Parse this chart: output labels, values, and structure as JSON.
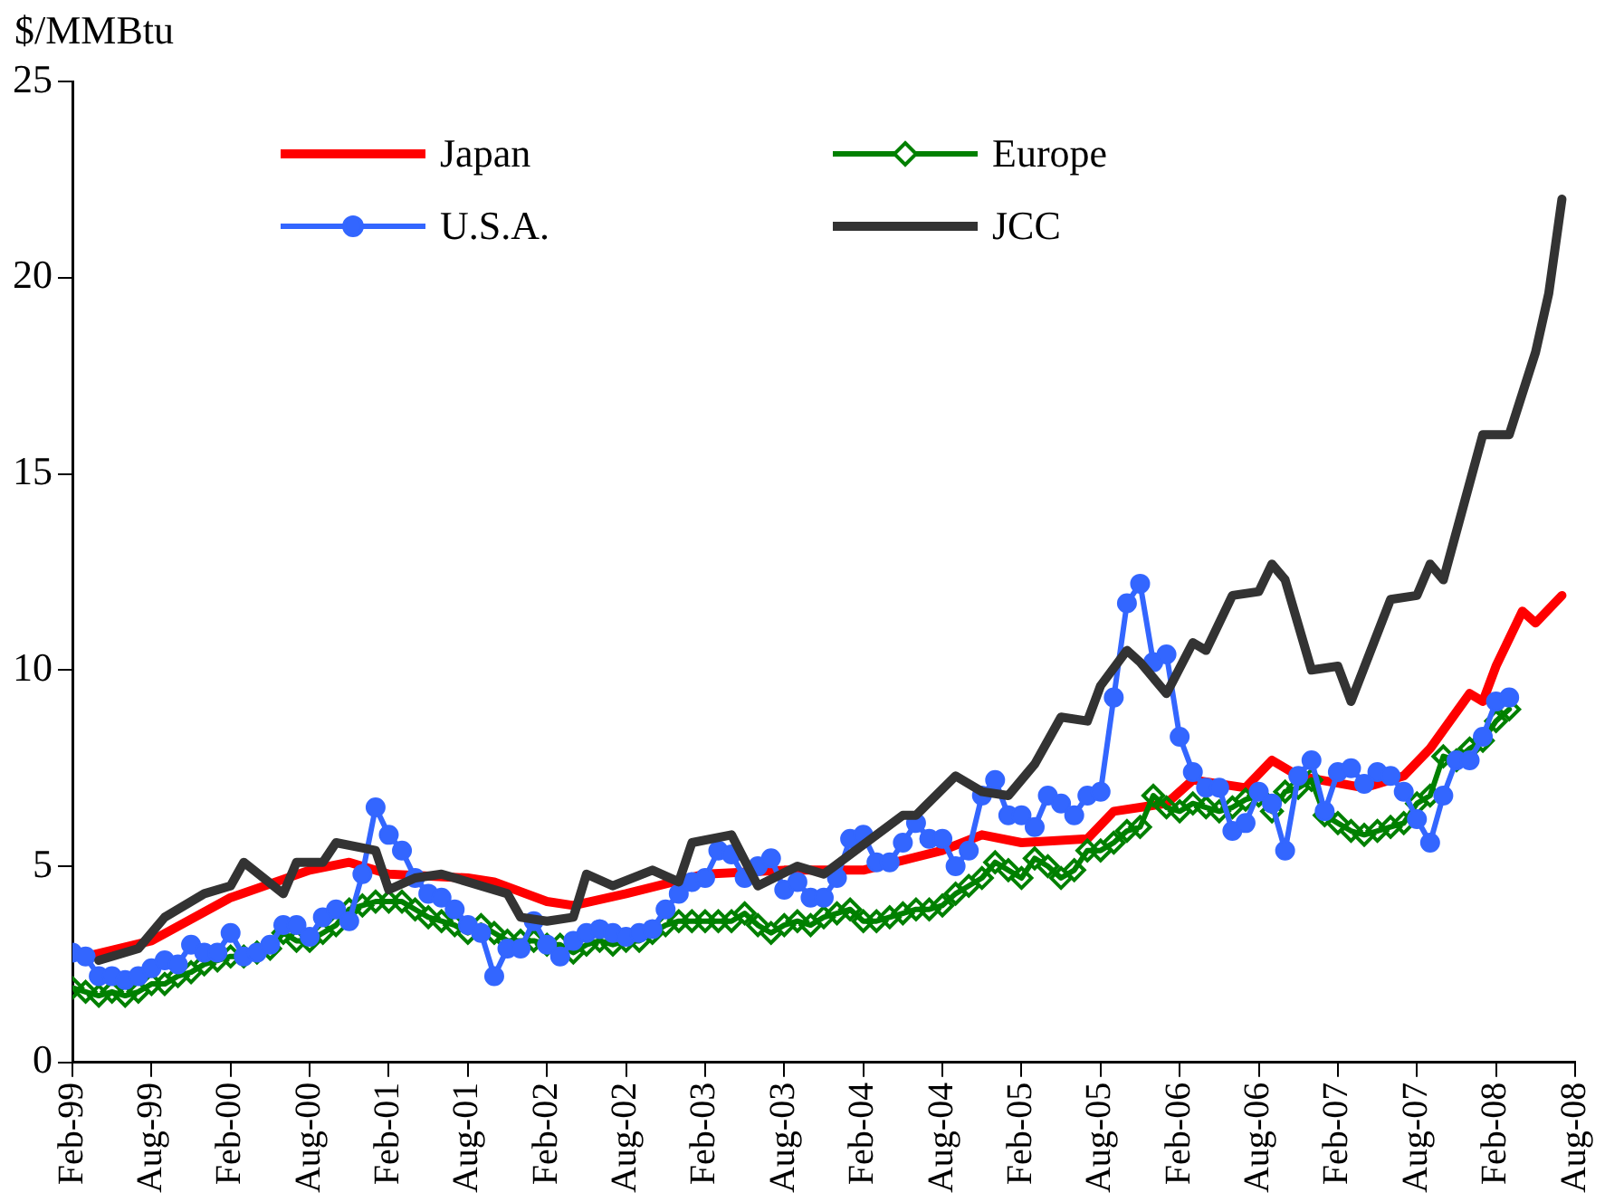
{
  "chart_data": {
    "type": "line",
    "ylabel": "$/MMBtu",
    "legend": "top left",
    "x": [
      "1999-02",
      "1999-03",
      "1999-04",
      "1999-05",
      "1999-06",
      "1999-07",
      "1999-08",
      "1999-09",
      "1999-10",
      "1999-11",
      "1999-12",
      "2000-01",
      "2000-02",
      "2000-03",
      "2000-04",
      "2000-05",
      "2000-06",
      "2000-07",
      "2000-08",
      "2000-09",
      "2000-10",
      "2000-11",
      "2000-12",
      "2001-01",
      "2001-02",
      "2001-03",
      "2001-04",
      "2001-05",
      "2001-06",
      "2001-07",
      "2001-08",
      "2001-09",
      "2001-10",
      "2001-11",
      "2001-12",
      "2002-01",
      "2002-02",
      "2002-03",
      "2002-04",
      "2002-05",
      "2002-06",
      "2002-07",
      "2002-08",
      "2002-09",
      "2002-10",
      "2002-11",
      "2002-12",
      "2003-01",
      "2003-02",
      "2003-03",
      "2003-04",
      "2003-05",
      "2003-06",
      "2003-07",
      "2003-08",
      "2003-09",
      "2003-10",
      "2003-11",
      "2003-12",
      "2004-01",
      "2004-02",
      "2004-03",
      "2004-04",
      "2004-05",
      "2004-06",
      "2004-07",
      "2004-08",
      "2004-09",
      "2004-10",
      "2004-11",
      "2004-12",
      "2005-01",
      "2005-02",
      "2005-03",
      "2005-04",
      "2005-05",
      "2005-06",
      "2005-07",
      "2005-08",
      "2005-09",
      "2005-10",
      "2005-11",
      "2005-12",
      "2006-01",
      "2006-02",
      "2006-03",
      "2006-04",
      "2006-05",
      "2006-06",
      "2006-07",
      "2006-08",
      "2006-09",
      "2006-10",
      "2006-11",
      "2006-12",
      "2007-01",
      "2007-02",
      "2007-03",
      "2007-04",
      "2007-05",
      "2007-06",
      "2007-07",
      "2007-08",
      "2007-09",
      "2007-10",
      "2007-11",
      "2007-12",
      "2008-01",
      "2008-02",
      "2008-03"
    ],
    "series": [
      {
        "name": "Japan",
        "color": "#ff0000",
        "marker": "none",
        "x": [
          "1999-03",
          "1999-08",
          "2000-02",
          "2000-08",
          "2000-11",
          "2001-02",
          "2001-08",
          "2001-10",
          "2002-02",
          "2002-04",
          "2002-08",
          "2003-02",
          "2003-08",
          "2004-02",
          "2004-08",
          "2004-11",
          "2005-02",
          "2005-07",
          "2005-09",
          "2006-01",
          "2006-03",
          "2006-07",
          "2006-09",
          "2006-11",
          "2007-04",
          "2007-07",
          "2007-09",
          "2007-12",
          "2008-01",
          "2008-02",
          "2008-04",
          "2008-05",
          "2008-07"
        ],
        "values": [
          2.7,
          3.1,
          4.2,
          4.9,
          5.1,
          4.8,
          4.7,
          4.6,
          4.1,
          4.0,
          4.3,
          4.8,
          4.9,
          4.9,
          5.4,
          5.8,
          5.6,
          5.7,
          6.4,
          6.6,
          7.2,
          7.0,
          7.7,
          7.3,
          7.0,
          7.3,
          8.0,
          9.4,
          9.2,
          10.1,
          11.5,
          11.2,
          11.9
        ]
      },
      {
        "name": "Europe",
        "color": "#008000",
        "marker": "diamond",
        "values": [
          1.9,
          1.8,
          1.7,
          1.8,
          1.7,
          1.8,
          2.0,
          2.0,
          2.2,
          2.3,
          2.5,
          2.6,
          2.7,
          2.7,
          2.8,
          2.9,
          3.3,
          3.1,
          3.1,
          3.3,
          3.5,
          3.9,
          4.0,
          4.1,
          4.1,
          4.1,
          3.9,
          3.7,
          3.6,
          3.5,
          3.3,
          3.5,
          3.3,
          3.1,
          3.1,
          3.1,
          3.0,
          3.0,
          2.8,
          3.0,
          3.1,
          3.0,
          3.1,
          3.1,
          3.3,
          3.5,
          3.6,
          3.6,
          3.6,
          3.6,
          3.6,
          3.8,
          3.5,
          3.3,
          3.5,
          3.6,
          3.5,
          3.7,
          3.8,
          3.9,
          3.6,
          3.6,
          3.7,
          3.8,
          3.9,
          3.9,
          4.0,
          4.3,
          4.5,
          4.7,
          5.1,
          4.9,
          4.7,
          5.2,
          5.0,
          4.7,
          4.9,
          5.4,
          5.4,
          5.6,
          5.9,
          6.0,
          6.8,
          6.5,
          6.4,
          6.6,
          6.5,
          6.4,
          6.5,
          6.7,
          6.8,
          6.4,
          6.9,
          7.0,
          7.2,
          6.3,
          6.1,
          5.9,
          5.8,
          5.9,
          6.0,
          6.1,
          6.6,
          6.8,
          7.8,
          7.7,
          8.0,
          8.2,
          8.7,
          9.0
        ]
      },
      {
        "name": "U.S.A.",
        "color": "#3366ff",
        "marker": "circle",
        "values": [
          2.8,
          2.7,
          2.2,
          2.2,
          2.1,
          2.2,
          2.4,
          2.6,
          2.5,
          3.0,
          2.8,
          2.8,
          3.3,
          2.7,
          2.8,
          3.0,
          3.5,
          3.5,
          3.2,
          3.7,
          3.9,
          3.6,
          4.8,
          6.5,
          5.8,
          5.4,
          4.7,
          4.3,
          4.2,
          3.9,
          3.5,
          3.3,
          2.2,
          2.9,
          2.9,
          3.6,
          3.0,
          2.7,
          3.1,
          3.3,
          3.4,
          3.3,
          3.2,
          3.3,
          3.4,
          3.9,
          4.3,
          4.6,
          4.7,
          5.4,
          5.3,
          4.7,
          5.0,
          5.2,
          4.4,
          4.6,
          4.2,
          4.2,
          4.7,
          5.7,
          5.8,
          5.1,
          5.1,
          5.6,
          6.1,
          5.7,
          5.7,
          5.0,
          5.4,
          6.8,
          7.2,
          6.3,
          6.3,
          6.0,
          6.8,
          6.6,
          6.3,
          6.8,
          6.9,
          9.3,
          11.7,
          12.2,
          10.2,
          10.4,
          8.3,
          7.4,
          7.0,
          7.0,
          5.9,
          6.1,
          6.9,
          6.6,
          5.4,
          7.3,
          7.7,
          6.4,
          7.4,
          7.5,
          7.1,
          7.4,
          7.3,
          6.9,
          6.2,
          5.6,
          6.8,
          7.7,
          7.7,
          8.3,
          9.2,
          9.3
        ]
      },
      {
        "name": "JCC",
        "color": "#333333",
        "marker": "none",
        "x": [
          "1999-04",
          "1999-07",
          "1999-09",
          "1999-12",
          "2000-02",
          "2000-03",
          "2000-06",
          "2000-07",
          "2000-09",
          "2000-10",
          "2001-01",
          "2001-02",
          "2001-04",
          "2001-06",
          "2001-11",
          "2001-12",
          "2002-02",
          "2002-04",
          "2002-05",
          "2002-07",
          "2002-10",
          "2002-12",
          "2003-01",
          "2003-04",
          "2003-06",
          "2003-09",
          "2003-11",
          "2004-05",
          "2004-06",
          "2004-09",
          "2004-11",
          "2005-01",
          "2005-03",
          "2005-05",
          "2005-07",
          "2005-08",
          "2005-10",
          "2005-11",
          "2006-01",
          "2006-03",
          "2006-04",
          "2006-06",
          "2006-08",
          "2006-09",
          "2006-10",
          "2006-12",
          "2007-02",
          "2007-03",
          "2007-06",
          "2007-08",
          "2007-09",
          "2007-10",
          "2008-01",
          "2008-03",
          "2008-05",
          "2008-06",
          "2008-07"
        ],
        "values": [
          2.6,
          2.9,
          3.7,
          4.3,
          4.5,
          5.1,
          4.3,
          5.1,
          5.1,
          5.6,
          5.4,
          4.4,
          4.7,
          4.8,
          4.3,
          3.7,
          3.6,
          3.7,
          4.8,
          4.5,
          4.9,
          4.6,
          5.6,
          5.8,
          4.5,
          5.0,
          4.8,
          6.3,
          6.3,
          7.3,
          6.9,
          6.8,
          7.6,
          8.8,
          8.7,
          9.6,
          10.5,
          10.2,
          9.4,
          10.7,
          10.5,
          11.9,
          12.0,
          12.7,
          12.3,
          10.0,
          10.1,
          9.2,
          11.8,
          11.9,
          12.7,
          12.3,
          16.0,
          16.0,
          18.1,
          19.6,
          22.0
        ]
      }
    ],
    "xlim": [
      "1999-02",
      "2008-08"
    ],
    "xticks": [
      {
        "value": "1999-02",
        "label": "Feb-99"
      },
      {
        "value": "1999-08",
        "label": "Aug-99"
      },
      {
        "value": "2000-02",
        "label": "Feb-00"
      },
      {
        "value": "2000-08",
        "label": "Aug-00"
      },
      {
        "value": "2001-02",
        "label": "Feb-01"
      },
      {
        "value": "2001-08",
        "label": "Aug-01"
      },
      {
        "value": "2002-02",
        "label": "Feb-02"
      },
      {
        "value": "2002-08",
        "label": "Aug-02"
      },
      {
        "value": "2003-02",
        "label": "Feb-03"
      },
      {
        "value": "2003-08",
        "label": "Aug-03"
      },
      {
        "value": "2004-02",
        "label": "Feb-04"
      },
      {
        "value": "2004-08",
        "label": "Aug-04"
      },
      {
        "value": "2005-02",
        "label": "Feb-05"
      },
      {
        "value": "2005-08",
        "label": "Aug-05"
      },
      {
        "value": "2006-02",
        "label": "Feb-06"
      },
      {
        "value": "2006-08",
        "label": "Aug-06"
      },
      {
        "value": "2007-02",
        "label": "Feb-07"
      },
      {
        "value": "2007-08",
        "label": "Aug-07"
      },
      {
        "value": "2008-02",
        "label": "Feb-08"
      },
      {
        "value": "2008-08",
        "label": "Aug-08"
      }
    ],
    "ylim": [
      0,
      25
    ],
    "yticks": [
      0,
      5,
      10,
      15,
      20,
      25
    ],
    "grid": false
  }
}
